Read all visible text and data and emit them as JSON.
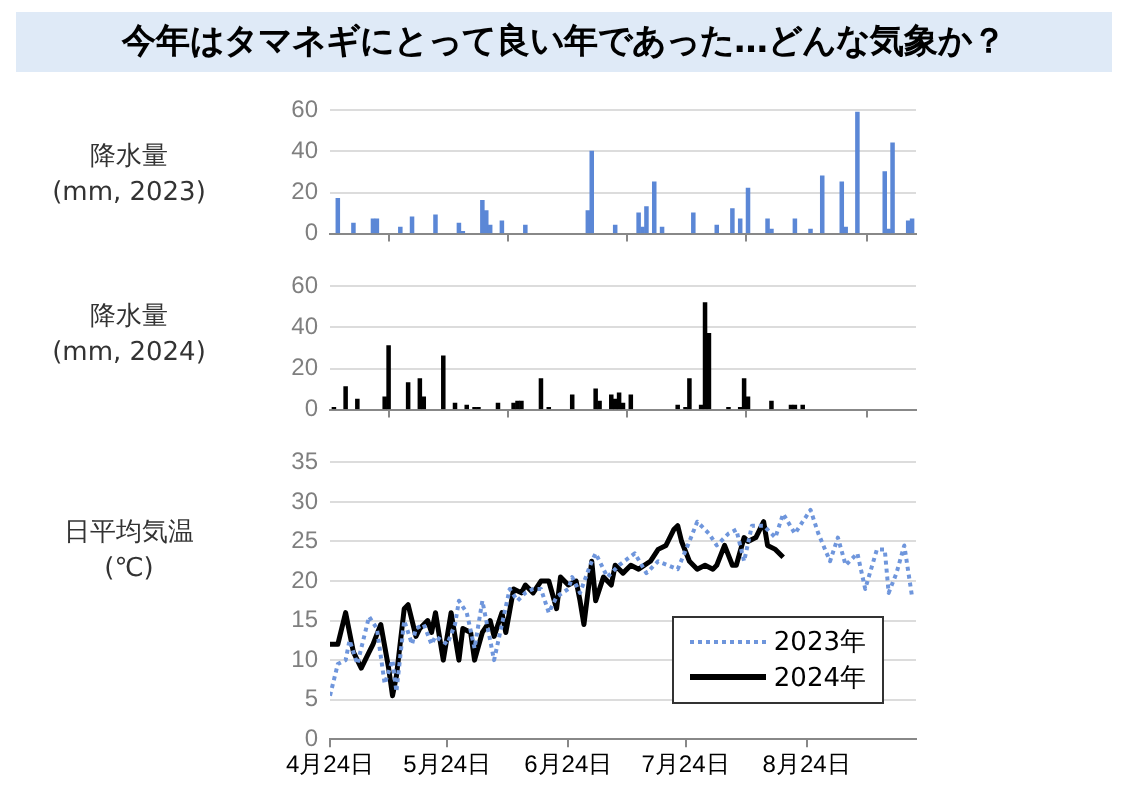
{
  "chart_data": [
    {
      "type": "bar",
      "title": "今年はタマネギにとって良い年であった…どんな気象か？",
      "ylabel": "降水量\n(mm, 2023)",
      "color": "#5b87d6",
      "grid": "y",
      "tick_labels": "y",
      "x": [
        "--04-26",
        "--04-30",
        "--05-05",
        "--05-06",
        "--05-12",
        "--05-15",
        "--05-21",
        "--05-27",
        "--05-28",
        "--06-02",
        "--06-03",
        "--06-04",
        "--06-07",
        "--06-13",
        "--06-29",
        "--06-30",
        "--07-06",
        "--07-12",
        "--07-13",
        "--07-14",
        "--07-16",
        "--07-18",
        "--07-26",
        "--08-01",
        "--08-05",
        "--08-07",
        "--08-09",
        "--08-14",
        "--08-15",
        "--08-21",
        "--08-25",
        "--08-28",
        "--09-02",
        "--09-03",
        "--09-06",
        "--09-13",
        "--09-14",
        "--09-15",
        "--09-19",
        "--09-20"
      ],
      "values": [
        17,
        5,
        7,
        7,
        3,
        8,
        9,
        5,
        1,
        16,
        11,
        4,
        6,
        4,
        11,
        40,
        4,
        10,
        3,
        13,
        25,
        3,
        10,
        4,
        12,
        7,
        22,
        7,
        2,
        7,
        2,
        28,
        25,
        3,
        59,
        30,
        2,
        44,
        6,
        7
      ],
      "xlim": [
        "--04-24",
        "--09-21"
      ],
      "xticks": [
        {
          "value": "--04-24",
          "label": "4月24日"
        },
        {
          "value": "--05-24",
          "label": "5月24日"
        },
        {
          "value": "--06-24",
          "label": "6月24日"
        },
        {
          "value": "--07-24",
          "label": "7月24日"
        },
        {
          "value": "--08-24",
          "label": "8月24日"
        }
      ],
      "ylim": [
        0,
        60
      ],
      "yticks": [
        0,
        20,
        40,
        60
      ]
    },
    {
      "type": "bar",
      "ylabel": "降水量\n(mm, 2024)",
      "color": "#000000",
      "grid": "y",
      "tick_labels": "y",
      "x": [
        "--04-25",
        "--04-28",
        "--05-01",
        "--05-08",
        "--05-09",
        "--05-14",
        "--05-17",
        "--05-18",
        "--05-23",
        "--05-26",
        "--05-29",
        "--05-31",
        "--06-01",
        "--06-06",
        "--06-10",
        "--06-11",
        "--06-12",
        "--06-17",
        "--06-19",
        "--06-25",
        "--07-01",
        "--07-02",
        "--07-05",
        "--07-06",
        "--07-07",
        "--07-08",
        "--07-10",
        "--07-22",
        "--07-24",
        "--07-25",
        "--07-28",
        "--07-29",
        "--07-30",
        "--08-04",
        "--08-07",
        "--08-08",
        "--08-09",
        "--08-15",
        "--08-20",
        "--08-21",
        "--08-23"
      ],
      "values": [
        1,
        11,
        5,
        6,
        31,
        13,
        15,
        6,
        26,
        3,
        2,
        1,
        1,
        3,
        3,
        4,
        4,
        15,
        1,
        7,
        10,
        4,
        7,
        5,
        8,
        3,
        7,
        2,
        1,
        15,
        2,
        52,
        37,
        1,
        1,
        15,
        6,
        4,
        2,
        2,
        2
      ],
      "xlim": [
        "--04-24",
        "--09-21"
      ],
      "xticks": [
        {
          "value": "--04-24",
          "label": "4月24日"
        },
        {
          "value": "--05-24",
          "label": "5月24日"
        },
        {
          "value": "--06-24",
          "label": "6月24日"
        },
        {
          "value": "--07-24",
          "label": "7月24日"
        },
        {
          "value": "--08-24",
          "label": "8月24日"
        }
      ],
      "ylim": [
        0,
        60
      ],
      "yticks": [
        0,
        20,
        40,
        60
      ]
    },
    {
      "type": "line",
      "ylabel": "日平均気温\n(℃)",
      "grid": "y",
      "legend": "bottom right",
      "series": [
        {
          "name": "2023年",
          "color": "#6f96dc",
          "line_style": "dotted",
          "x": [
            "--04-24",
            "--04-26",
            "--04-28",
            "--04-29",
            "--05-01",
            "--05-04",
            "--05-06",
            "--05-08",
            "--05-10",
            "--05-11",
            "--05-13",
            "--05-15",
            "--05-16",
            "--05-18",
            "--05-20",
            "--05-21",
            "--05-24",
            "--05-26",
            "--05-27",
            "--05-29",
            "--05-31",
            "--06-02",
            "--06-05",
            "--06-07",
            "--06-09",
            "--06-11",
            "--06-13",
            "--06-15",
            "--06-17",
            "--06-19",
            "--06-21",
            "--06-24",
            "--06-25",
            "--06-27",
            "--06-30",
            "--07-01",
            "--07-04",
            "--07-07",
            "--07-11",
            "--07-14",
            "--07-17",
            "--07-22",
            "--07-25",
            "--07-27",
            "--07-30",
            "--08-01",
            "--08-04",
            "--08-06",
            "--08-08",
            "--08-10",
            "--08-13",
            "--08-16",
            "--08-18",
            "--08-21",
            "--08-23",
            "--08-25",
            "--08-27",
            "--08-30",
            "--09-01",
            "--09-03",
            "--09-06",
            "--09-08",
            "--09-11",
            "--09-13",
            "--09-14",
            "--09-16",
            "--09-18",
            "--09-20"
          ],
          "values": [
            5.5,
            9.5,
            10,
            12.5,
            9.5,
            15.5,
            14,
            7,
            10,
            6,
            15,
            12,
            14,
            14.5,
            12,
            13,
            12,
            14.5,
            17.5,
            16,
            11.5,
            17.5,
            10,
            14.5,
            19,
            17.5,
            18.5,
            19,
            19,
            16,
            18,
            19,
            20.5,
            18.5,
            22.5,
            23.5,
            20.5,
            22,
            23.5,
            21,
            22.5,
            21.5,
            25,
            27.5,
            26,
            24.5,
            26,
            26.5,
            22.5,
            27,
            27,
            25.5,
            28.5,
            26,
            27.5,
            29,
            26,
            22.5,
            25.5,
            22,
            23.5,
            19,
            24,
            24,
            18.5,
            21,
            24.5,
            18
          ]
        },
        {
          "name": "2024年",
          "color": "#000000",
          "line_style": "solid",
          "x": [
            "--04-24",
            "--04-26",
            "--04-28",
            "--04-30",
            "--05-02",
            "--05-04",
            "--05-05",
            "--05-07",
            "--05-09",
            "--05-10",
            "--05-11",
            "--05-13",
            "--05-14",
            "--05-16",
            "--05-17",
            "--05-19",
            "--05-20",
            "--05-21",
            "--05-23",
            "--05-25",
            "--05-27",
            "--05-28",
            "--05-30",
            "--05-31",
            "--06-02",
            "--06-04",
            "--06-05",
            "--06-07",
            "--06-08",
            "--06-10",
            "--06-12",
            "--06-13",
            "--06-15",
            "--06-17",
            "--06-19",
            "--06-21",
            "--06-22",
            "--06-24",
            "--06-26",
            "--06-27",
            "--06-28",
            "--06-30",
            "--07-01",
            "--07-03",
            "--07-05",
            "--07-06",
            "--07-08",
            "--07-10",
            "--07-12",
            "--07-15",
            "--07-17",
            "--07-19",
            "--07-21",
            "--07-22",
            "--07-23",
            "--07-25",
            "--07-27",
            "--07-29",
            "--07-31",
            "--08-01",
            "--08-03",
            "--08-05",
            "--08-06",
            "--08-08",
            "--08-09",
            "--08-11",
            "--08-13",
            "--08-14",
            "--08-16",
            "--08-18"
          ],
          "values": [
            12,
            12,
            16,
            11,
            9,
            11,
            12,
            14.5,
            9,
            5.5,
            8,
            16.5,
            17,
            13,
            14,
            15,
            13.5,
            16,
            10,
            16,
            10,
            14,
            13.5,
            10,
            13.5,
            15,
            13,
            16,
            13.5,
            19,
            18.5,
            19.5,
            18.5,
            20,
            20,
            16.5,
            20.5,
            19.5,
            20,
            17.5,
            14.5,
            22.5,
            17.5,
            20.5,
            19.5,
            22,
            21,
            22,
            21.5,
            22.5,
            24,
            24.5,
            26.5,
            27,
            25,
            22.5,
            21.5,
            22,
            21.5,
            22,
            24.5,
            22,
            22,
            25.5,
            25,
            25.5,
            27.5,
            24.5,
            24,
            23
          ]
        }
      ],
      "xlim": [
        "--04-24",
        "--09-21"
      ],
      "xticks": [
        {
          "value": "--04-24",
          "label": "4月24日"
        },
        {
          "value": "--05-24",
          "label": "5月24日"
        },
        {
          "value": "--06-24",
          "label": "6月24日"
        },
        {
          "value": "--07-24",
          "label": "7月24日"
        },
        {
          "value": "--08-24",
          "label": "8月24日"
        }
      ],
      "ylim": [
        0,
        35
      ],
      "yticks": [
        0,
        5,
        10,
        15,
        20,
        25,
        30,
        35
      ]
    }
  ]
}
